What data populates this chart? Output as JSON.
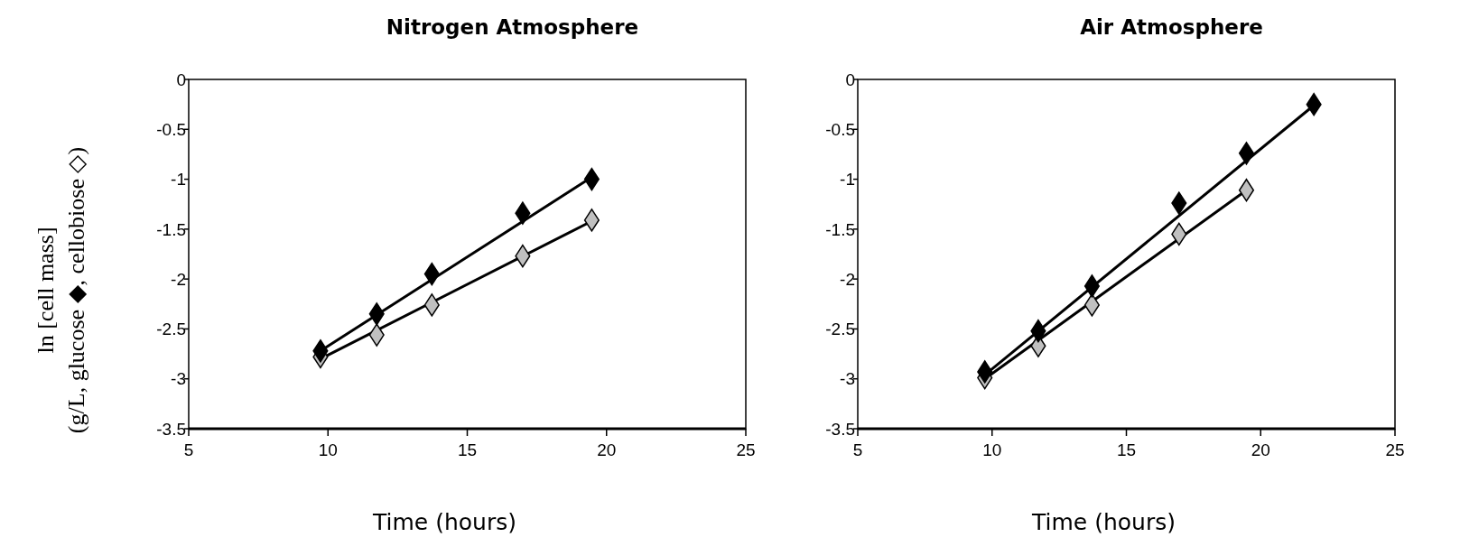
{
  "chart_data": [
    {
      "type": "scatter",
      "title": "Nitrogen Atmosphere",
      "xlabel": "Time (hours)",
      "ylabel": "ln [cell mass]\n(g/L, glucose ◆, cellobiose ◇)",
      "xlim": [
        5,
        25
      ],
      "xticks": [
        5,
        10,
        15,
        20,
        25
      ],
      "ylim": [
        -3.5,
        0
      ],
      "yticks": [
        -3.5,
        -3,
        -2.5,
        -2,
        -1.5,
        -1,
        -0.5,
        0
      ],
      "grid": false,
      "marker": "diamond",
      "series": [
        {
          "type": "line",
          "marker": "none",
          "color": "#000000",
          "x": [
            9.73,
            19.47
          ],
          "values": [
            -2.72,
            -0.98
          ]
        },
        {
          "type": "line",
          "marker": "none",
          "color": "#000000",
          "x": [
            9.73,
            19.47
          ],
          "values": [
            -2.8,
            -1.42
          ]
        },
        {
          "color": "#c0c0c0",
          "x": [
            9.73,
            11.75,
            13.73,
            16.99,
            19.47
          ],
          "values": [
            -2.78,
            -2.56,
            -2.26,
            -1.77,
            -1.41
          ]
        },
        {
          "color": "#000000",
          "x": [
            9.73,
            11.75,
            13.73,
            16.99,
            19.47
          ],
          "values": [
            -2.72,
            -2.35,
            -1.95,
            -1.34,
            -1.0
          ]
        }
      ]
    },
    {
      "type": "scatter",
      "title": "Air Atmosphere",
      "xlabel": "Time (hours)",
      "xlim": [
        5,
        25
      ],
      "xticks": [
        5,
        10,
        15,
        20,
        25
      ],
      "ylim": [
        -3.5,
        0
      ],
      "yticks": [
        -3.5,
        -3,
        -2.5,
        -2,
        -1.5,
        -1,
        -0.5,
        0
      ],
      "grid": false,
      "marker": "diamond",
      "series": [
        {
          "type": "line",
          "marker": "none",
          "color": "#000000",
          "x": [
            9.73,
            21.98
          ],
          "values": [
            -2.96,
            -0.26
          ]
        },
        {
          "type": "line",
          "marker": "none",
          "color": "#000000",
          "x": [
            9.73,
            19.47
          ],
          "values": [
            -3.0,
            -1.11
          ]
        },
        {
          "color": "#c0c0c0",
          "x": [
            9.73,
            11.72,
            13.72,
            16.96,
            19.47
          ],
          "values": [
            -2.99,
            -2.67,
            -2.26,
            -1.55,
            -1.11
          ]
        },
        {
          "color": "#000000",
          "x": [
            9.73,
            11.72,
            13.72,
            16.96,
            19.47,
            21.98
          ],
          "values": [
            -2.93,
            -2.52,
            -2.07,
            -1.24,
            -0.74,
            -0.25
          ]
        }
      ]
    }
  ]
}
